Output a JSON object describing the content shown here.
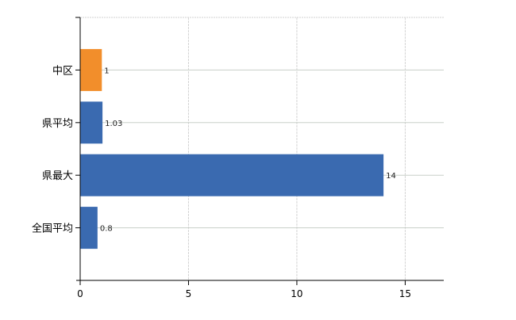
{
  "chart_data": {
    "type": "bar",
    "orientation": "horizontal",
    "categories": [
      "中区",
      "県平均",
      "県最大",
      "全国平均"
    ],
    "values": [
      1,
      1.03,
      14,
      0.8
    ],
    "data_labels": [
      "1",
      "1.03",
      "14",
      "0.8"
    ],
    "bar_colors": [
      "#f28e2b",
      "#3a6ab0",
      "#3a6ab0",
      "#3a6ab0"
    ],
    "xlim": [
      0,
      16.78
    ],
    "xticks": [
      0,
      5,
      10,
      15
    ],
    "xtick_labels": [
      "0",
      "5",
      "10",
      "15"
    ],
    "grid": true,
    "title": "",
    "xlabel": "",
    "ylabel": ""
  }
}
